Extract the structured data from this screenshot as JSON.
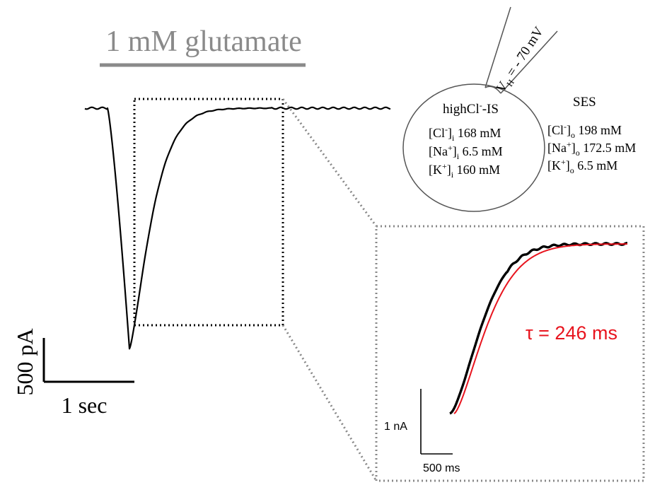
{
  "stimulus": {
    "label": "1 mM glutamate",
    "color": "#8a8a8a"
  },
  "scale_bar_main": {
    "amplitude": "500 pA",
    "time": "1 sec"
  },
  "cell_diagram": {
    "holding_potential": {
      "prefix": "V",
      "subscript": "H",
      "value": " = - 70 mV"
    },
    "internal_solution": {
      "label_prefix": "highCl",
      "label_sup": "-",
      "label_suffix": "-IS",
      "rows": [
        {
          "ion": "Cl",
          "charge": "-",
          "side": "i",
          "conc": "168 mM"
        },
        {
          "ion": "Na",
          "charge": "+",
          "side": "i",
          "conc": "6.5 mM"
        },
        {
          "ion": "K",
          "charge": "+",
          "side": "i",
          "conc": "160 mM"
        }
      ]
    },
    "external_solution": {
      "label": "SES",
      "rows": [
        {
          "ion": "Cl",
          "charge": "-",
          "side": "o",
          "conc": "198 mM"
        },
        {
          "ion": "Na",
          "charge": "+",
          "side": "o",
          "conc": "172.5 mM"
        },
        {
          "ion": "K",
          "charge": "+",
          "side": "o",
          "conc": "6.5 mM"
        }
      ]
    }
  },
  "inset": {
    "tau_label": "τ = 246 ms",
    "tau_color": "#e8141e",
    "fit_color": "#e8141e",
    "trace_color": "#000000",
    "amplitude_scale": "1 nA",
    "time_scale": "500 ms"
  },
  "zoom_box_color": "#888888"
}
